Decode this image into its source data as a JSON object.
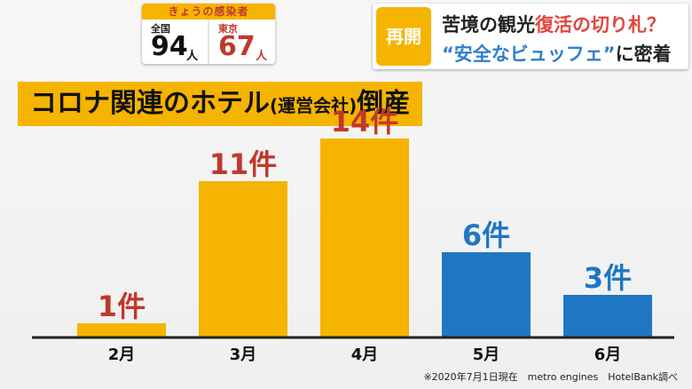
{
  "infection_box": {
    "header": "きょうの感染者",
    "nationwide_label": "全国",
    "nationwide_value": "94",
    "nationwide_unit": "人",
    "tokyo_label": "東京",
    "tokyo_value": "67",
    "tokyo_unit": "人"
  },
  "news": {
    "badge": "再開",
    "line1_part1": "苦境の観光",
    "line1_accent": "復活の切り札？",
    "line2_accent": "“安全なビュッフェ”",
    "line2_part2": "に密着"
  },
  "chart_title_main": "コロナ関連のホテル",
  "chart_title_sub": "(運営会社)",
  "chart_title_end": "倒産",
  "source": "※2020年7月1日現在　metro engines　HotelBank調べ",
  "colors": {
    "yellow": "#f5b400",
    "blue": "#1f77c4",
    "red": "#c0392b"
  },
  "chart_data": {
    "type": "bar",
    "categories": [
      "2月",
      "3月",
      "4月",
      "5月",
      "6月"
    ],
    "values": [
      1,
      11,
      14,
      6,
      3
    ],
    "value_labels": [
      "1件",
      "11件",
      "14件",
      "6件",
      "3件"
    ],
    "bar_colors": [
      "#f5b400",
      "#f5b400",
      "#f5b400",
      "#1f77c4",
      "#1f77c4"
    ],
    "label_colors": [
      "#c0392b",
      "#c0392b",
      "#c0392b",
      "#1f77c4",
      "#1f77c4"
    ],
    "ylim": [
      0,
      14
    ]
  }
}
